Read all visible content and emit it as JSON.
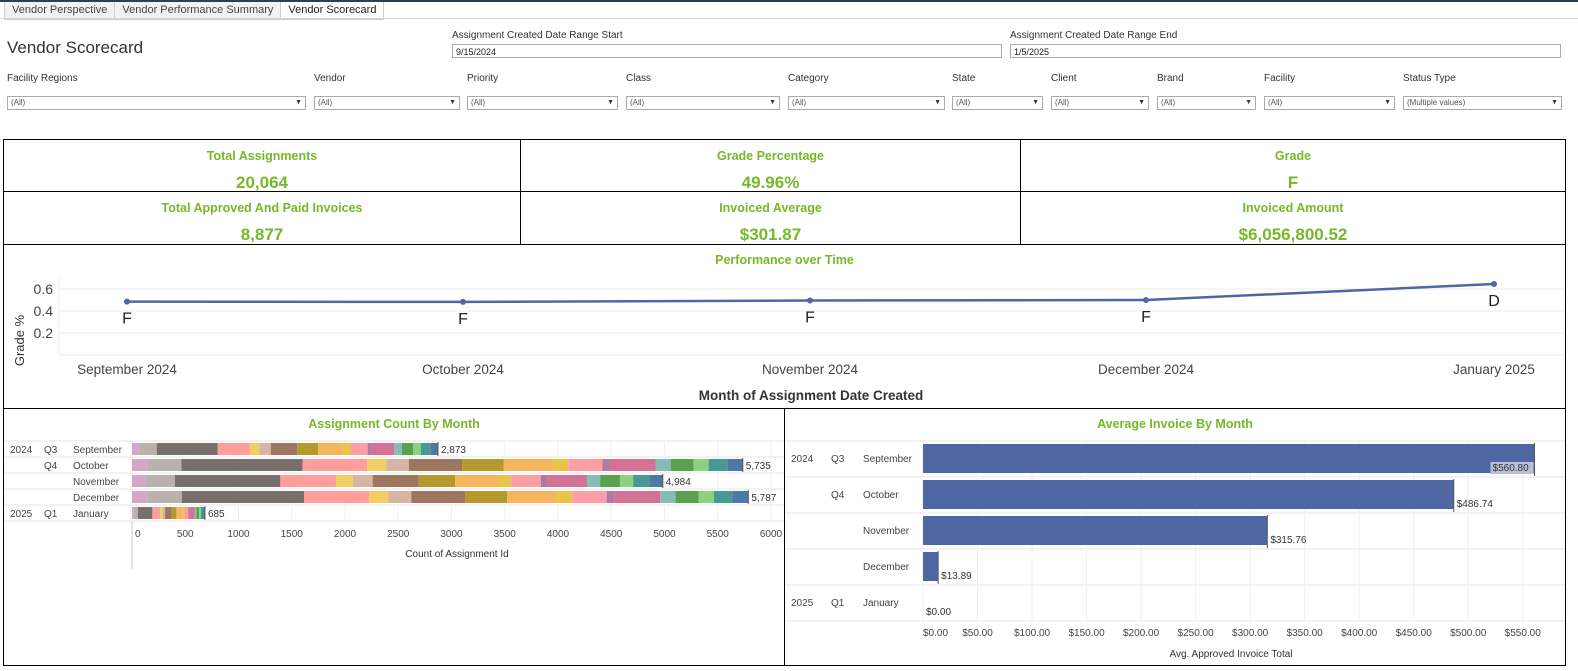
{
  "tabs": [
    "Vendor Perspective",
    "Vendor Performance Summary",
    "Vendor Scorecard"
  ],
  "page_title": "Vendor Scorecard",
  "date_range": {
    "start_label": "Assignment Created Date Range Start",
    "start_value": "9/15/2024",
    "end_label": "Assignment Created Date Range End",
    "end_value": "1/5/2025"
  },
  "filters": [
    {
      "label": "Facility Regions",
      "value": "(All)"
    },
    {
      "label": "Vendor",
      "value": "(All)"
    },
    {
      "label": "Priority",
      "value": "(All)"
    },
    {
      "label": "Class",
      "value": "(All)"
    },
    {
      "label": "Category",
      "value": "(All)"
    },
    {
      "label": "State",
      "value": "(All)"
    },
    {
      "label": "Client",
      "value": "(All)"
    },
    {
      "label": "Brand",
      "value": "(All)"
    },
    {
      "label": "Facility",
      "value": "(All)"
    },
    {
      "label": "Status Type",
      "value": "(Multiple values)"
    }
  ],
  "kpis": [
    {
      "label": "Total Assignments",
      "value": "20,064"
    },
    {
      "label": "Grade Percentage",
      "value": "49.96%"
    },
    {
      "label": "Grade",
      "value": "F"
    },
    {
      "label": "Total Approved And Paid Invoices",
      "value": "8,877"
    },
    {
      "label": "Invoiced Average",
      "value": "$301.87"
    },
    {
      "label": "Invoiced Amount",
      "value": "$6,056,800.52"
    }
  ],
  "colors": {
    "accent": "#76b82a",
    "series": "#4e67a3",
    "border": "#000000"
  },
  "chart_data": [
    {
      "type": "line",
      "title": "Performance over Time",
      "xlabel": "Month of Assignment Date Created",
      "ylabel": "Grade %",
      "categories": [
        "September 2024",
        "October 2024",
        "November 2024",
        "December 2024",
        "January 2025"
      ],
      "values": [
        0.485,
        0.483,
        0.495,
        0.5,
        0.645
      ],
      "labels": [
        "F",
        "F",
        "F",
        "F",
        "D"
      ],
      "yticks": [
        "0.6",
        "0.4",
        "0.2"
      ],
      "ylim": [
        0,
        0.7
      ]
    },
    {
      "type": "bar",
      "title": "Assignment Count By Month",
      "xlabel": "Count of Assignment Id",
      "rows": [
        {
          "year": "2024",
          "quarter": "Q3",
          "month": "September",
          "value": 2873,
          "label": "2,873"
        },
        {
          "year": "",
          "quarter": "Q4",
          "month": "October",
          "value": 5735,
          "label": "5,735"
        },
        {
          "year": "",
          "quarter": "",
          "month": "November",
          "value": 4984,
          "label": "4,984"
        },
        {
          "year": "",
          "quarter": "",
          "month": "December",
          "value": 5787,
          "label": "5,787"
        },
        {
          "year": "2025",
          "quarter": "Q1",
          "month": "January",
          "value": 685,
          "label": "685"
        }
      ],
      "xticks": [
        "0",
        "500",
        "1000",
        "1500",
        "2000",
        "2500",
        "3000",
        "3500",
        "4000",
        "4500",
        "5000",
        "5500",
        "6000"
      ],
      "xlim": [
        0,
        6000
      ]
    },
    {
      "type": "bar",
      "title": "Average Invoice By Month",
      "xlabel": "Avg. Approved Invoice Total",
      "rows": [
        {
          "year": "2024",
          "quarter": "Q3",
          "month": "September",
          "value": 560.8,
          "label": "$560.80"
        },
        {
          "year": "",
          "quarter": "Q4",
          "month": "October",
          "value": 486.74,
          "label": "$486.74"
        },
        {
          "year": "",
          "quarter": "",
          "month": "November",
          "value": 315.76,
          "label": "$315.76"
        },
        {
          "year": "",
          "quarter": "",
          "month": "December",
          "value": 13.89,
          "label": "$13.89"
        },
        {
          "year": "2025",
          "quarter": "Q1",
          "month": "January",
          "value": 0,
          "label": "$0.00"
        }
      ],
      "xticks": [
        "$0.00",
        "$50.00",
        "$100.00",
        "$150.00",
        "$200.00",
        "$250.00",
        "$300.00",
        "$350.00",
        "$400.00",
        "$450.00",
        "$500.00",
        "$550.00"
      ],
      "xlim": [
        0,
        575
      ]
    }
  ]
}
